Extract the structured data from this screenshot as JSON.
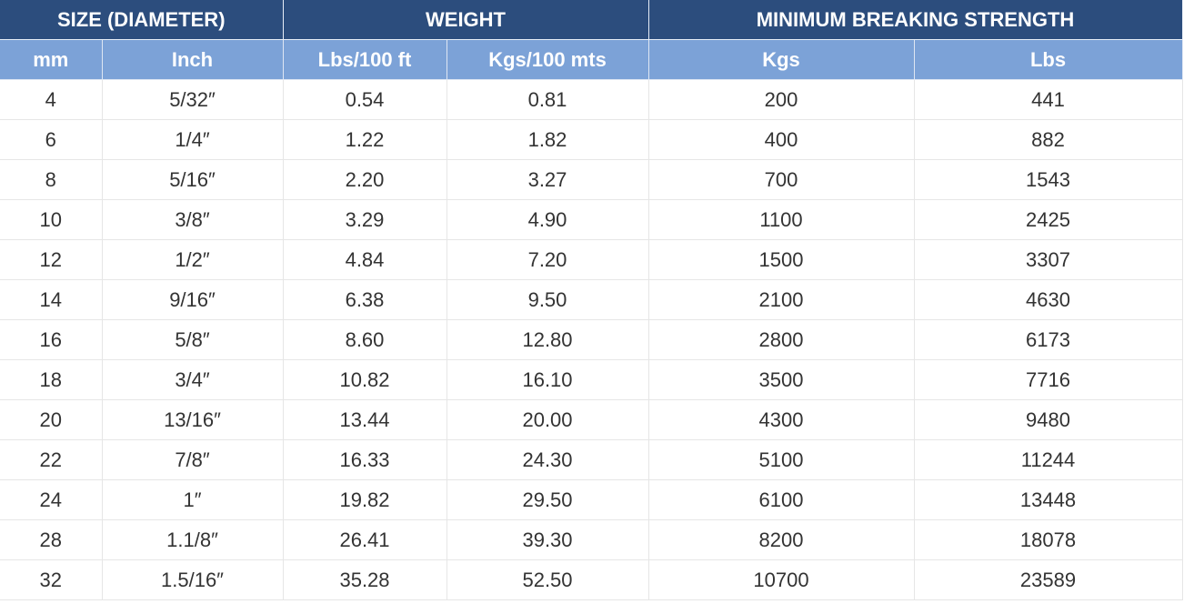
{
  "table": {
    "groups": [
      "SIZE (DIAMETER)",
      "WEIGHT",
      "MINIMUM BREAKING STRENGTH"
    ],
    "columns": [
      "mm",
      "Inch",
      "Lbs/100 ft",
      "Kgs/100 mts",
      "Kgs",
      "Lbs"
    ],
    "rows": [
      [
        "4",
        "5/32″",
        "0.54",
        "0.81",
        "200",
        "441"
      ],
      [
        "6",
        "1/4″",
        "1.22",
        "1.82",
        "400",
        "882"
      ],
      [
        "8",
        "5/16″",
        "2.20",
        "3.27",
        "700",
        "1543"
      ],
      [
        "10",
        "3/8″",
        "3.29",
        "4.90",
        "1100",
        "2425"
      ],
      [
        "12",
        "1/2″",
        "4.84",
        "7.20",
        "1500",
        "3307"
      ],
      [
        "14",
        "9/16″",
        "6.38",
        "9.50",
        "2100",
        "4630"
      ],
      [
        "16",
        "5/8″",
        "8.60",
        "12.80",
        "2800",
        "6173"
      ],
      [
        "18",
        "3/4″",
        "10.82",
        "16.10",
        "3500",
        "7716"
      ],
      [
        "20",
        "13/16″",
        "13.44",
        "20.00",
        "4300",
        "9480"
      ],
      [
        "22",
        "7/8″",
        "16.33",
        "24.30",
        "5100",
        "11244"
      ],
      [
        "24",
        "1″",
        "19.82",
        "29.50",
        "6100",
        "13448"
      ],
      [
        "28",
        "1.1/8″",
        "26.41",
        "39.30",
        "8200",
        "18078"
      ],
      [
        "32",
        "1.5/16″",
        "35.28",
        "52.50",
        "10700",
        "23589"
      ]
    ]
  }
}
